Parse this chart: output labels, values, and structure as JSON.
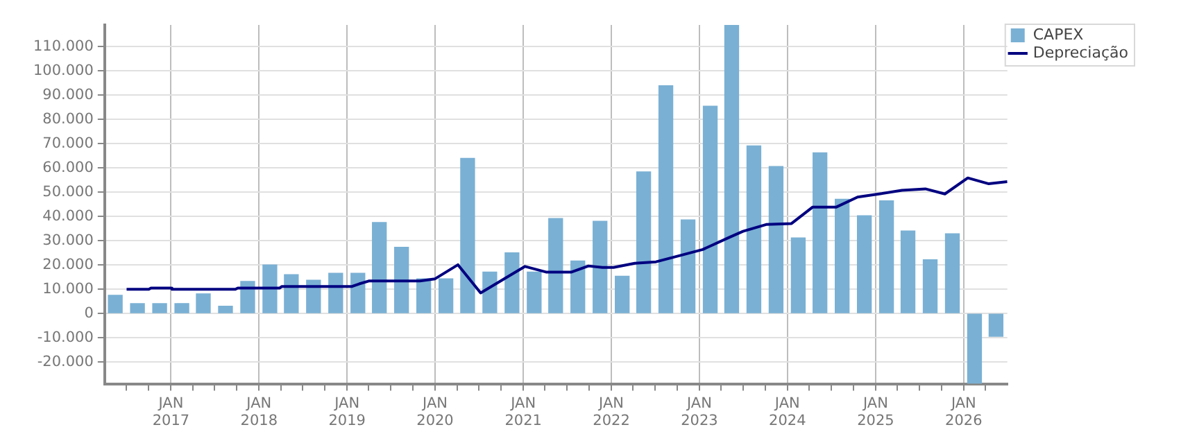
{
  "chart_data": {
    "type": "bar",
    "x": [
      "2016-05-15",
      "2016-08-15",
      "2016-11-15",
      "2017-02-15",
      "2017-05-15",
      "2017-08-15",
      "2017-11-15",
      "2018-02-15",
      "2018-05-15",
      "2018-08-15",
      "2018-11-15",
      "2019-02-15",
      "2019-05-15",
      "2019-08-15",
      "2019-11-15",
      "2020-02-15",
      "2020-05-15",
      "2020-08-15",
      "2020-11-15",
      "2021-02-15",
      "2021-05-15",
      "2021-08-15",
      "2021-11-15",
      "2022-02-15",
      "2022-05-15",
      "2022-08-15",
      "2022-11-15",
      "2023-02-15",
      "2023-05-15",
      "2023-08-15",
      "2023-11-15",
      "2024-02-15",
      "2024-05-15",
      "2024-08-15",
      "2024-11-15",
      "2025-02-15",
      "2025-05-15",
      "2025-08-15",
      "2025-11-15",
      "2026-02-15",
      "2026-05-15"
    ],
    "series": [
      {
        "name": "CAPEX",
        "color": "#7ab0d4",
        "values": [
          7500,
          4100,
          4100,
          4100,
          8100,
          3000,
          13200,
          20000,
          16000,
          13700,
          16600,
          16600,
          37500,
          27300,
          14300,
          14300,
          64000,
          17100,
          25000,
          17100,
          39200,
          21700,
          38000,
          15400,
          58400,
          93900,
          38600,
          85500,
          118800,
          69100,
          60600,
          31200,
          66300,
          47100,
          40300,
          46500,
          34000,
          22200,
          32900,
          -28800,
          -9400
        ]
      },
      {
        "name": "Depreciação",
        "type": "line",
        "color": "#000080",
        "x": [
          "2016-07-01",
          "2016-10-01",
          "2016-10-10",
          "2017-01-01",
          "2017-01-05",
          "2017-09-25",
          "2017-10-05",
          "2018-03-28",
          "2018-04-05",
          "2019-01-20",
          "2019-02-20",
          "2019-04-01",
          "2019-10-30",
          "2020-01-01",
          "2020-04-05",
          "2020-07-08",
          "2021-01-08",
          "2021-04-05",
          "2021-07-20",
          "2021-09-28",
          "2021-11-25",
          "2022-01-10",
          "2022-04-08",
          "2022-07-05",
          "2022-10-12",
          "2023-01-15",
          "2023-05-05",
          "2023-07-01",
          "2023-10-05",
          "2024-01-18",
          "2024-04-15",
          "2024-07-22",
          "2024-10-18",
          "2025-01-15",
          "2025-04-20",
          "2025-07-26",
          "2025-10-15",
          "2026-01-18",
          "2026-04-15",
          "2026-07-01"
        ],
        "values": [
          10000,
          10000,
          10500,
          10500,
          10000,
          10000,
          10500,
          10500,
          11100,
          11100,
          12200,
          13400,
          13400,
          14300,
          20100,
          8500,
          19400,
          17100,
          17100,
          19600,
          19000,
          19000,
          20700,
          21300,
          23900,
          26400,
          31400,
          33900,
          36700,
          37100,
          43900,
          43900,
          48000,
          49300,
          50800,
          51400,
          49300,
          55900,
          53500,
          54400
        ]
      }
    ],
    "xlim": [
      "2016-04-01",
      "2026-07-01"
    ],
    "xticks": [
      {
        "value": "2016-07-01",
        "label": null
      },
      {
        "value": "2016-10-01",
        "label": null
      },
      {
        "value": "2017-01-01",
        "label": "JAN\n2017"
      },
      {
        "value": "2017-04-01",
        "label": null
      },
      {
        "value": "2017-07-01",
        "label": null
      },
      {
        "value": "2017-10-01",
        "label": null
      },
      {
        "value": "2018-01-01",
        "label": "JAN\n2018"
      },
      {
        "value": "2018-04-01",
        "label": null
      },
      {
        "value": "2018-07-01",
        "label": null
      },
      {
        "value": "2018-10-01",
        "label": null
      },
      {
        "value": "2019-01-01",
        "label": "JAN\n2019"
      },
      {
        "value": "2019-04-01",
        "label": null
      },
      {
        "value": "2019-07-01",
        "label": null
      },
      {
        "value": "2019-10-01",
        "label": null
      },
      {
        "value": "2020-01-01",
        "label": "JAN\n2020"
      },
      {
        "value": "2020-04-01",
        "label": null
      },
      {
        "value": "2020-07-01",
        "label": null
      },
      {
        "value": "2020-10-01",
        "label": null
      },
      {
        "value": "2021-01-01",
        "label": "JAN\n2021"
      },
      {
        "value": "2021-04-01",
        "label": null
      },
      {
        "value": "2021-07-01",
        "label": null
      },
      {
        "value": "2021-10-01",
        "label": null
      },
      {
        "value": "2022-01-01",
        "label": "JAN\n2022"
      },
      {
        "value": "2022-04-01",
        "label": null
      },
      {
        "value": "2022-07-01",
        "label": null
      },
      {
        "value": "2022-10-01",
        "label": null
      },
      {
        "value": "2023-01-01",
        "label": "JAN\n2023"
      },
      {
        "value": "2023-04-01",
        "label": null
      },
      {
        "value": "2023-07-01",
        "label": null
      },
      {
        "value": "2023-10-01",
        "label": null
      },
      {
        "value": "2024-01-01",
        "label": "JAN\n2024"
      },
      {
        "value": "2024-04-01",
        "label": null
      },
      {
        "value": "2024-07-01",
        "label": null
      },
      {
        "value": "2024-10-01",
        "label": null
      },
      {
        "value": "2025-01-01",
        "label": "JAN\n2025"
      },
      {
        "value": "2025-04-01",
        "label": null
      },
      {
        "value": "2025-07-01",
        "label": null
      },
      {
        "value": "2025-10-01",
        "label": null
      },
      {
        "value": "2026-01-01",
        "label": "JAN\n2026"
      },
      {
        "value": "2026-04-01",
        "label": null
      }
    ],
    "ylim": [
      -29000,
      119000
    ],
    "yticks": [
      {
        "value": -20000,
        "label": "-20.000"
      },
      {
        "value": -10000,
        "label": "-10.000"
      },
      0,
      {
        "value": 10000,
        "label": "10.000"
      },
      {
        "value": 20000,
        "label": "20.000"
      },
      {
        "value": 30000,
        "label": "30.000"
      },
      {
        "value": 40000,
        "label": "40.000"
      },
      {
        "value": 50000,
        "label": "50.000"
      },
      {
        "value": 60000,
        "label": "60.000"
      },
      {
        "value": 70000,
        "label": "70.000"
      },
      {
        "value": 80000,
        "label": "80.000"
      },
      {
        "value": 90000,
        "label": "90.000"
      },
      {
        "value": 100000,
        "label": "100.000"
      },
      {
        "value": 110000,
        "label": "110.000"
      }
    ],
    "grid": true,
    "legend": "right",
    "marker": "none"
  }
}
